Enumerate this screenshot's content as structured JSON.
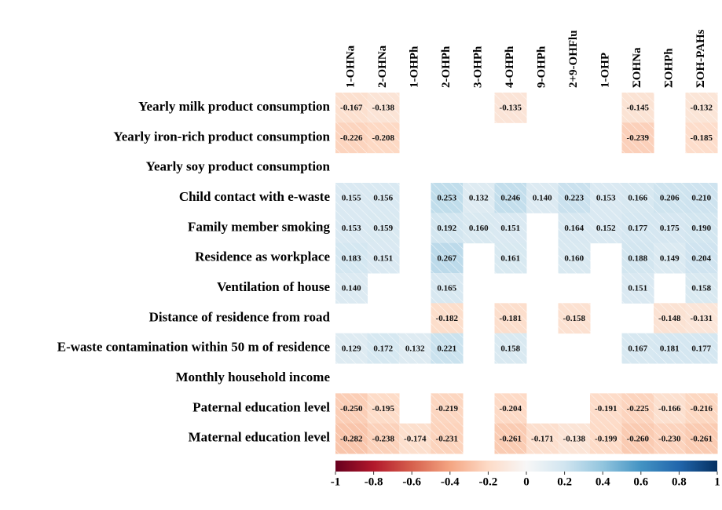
{
  "chart_data": {
    "type": "heatmap",
    "columns": [
      "1-OHNa",
      "2-OHNa",
      "1-OHPh",
      "2-OHPh",
      "3-OHPh",
      "4-OHPh",
      "9-OHPh",
      "2+9-OHFlu",
      "1-OHP",
      "ΣOHNa",
      "ΣOHPh",
      "ΣOH-PAHs"
    ],
    "rows": [
      "Yearly milk product consumption",
      "Yearly iron-rich product consumption",
      "Yearly soy product consumption",
      "Child contact with e-waste",
      "Family member smoking",
      "Residence as workplace",
      "Ventilation of house",
      "Distance of residence from road",
      "E-waste contamination within 50 m of residence",
      "Monthly household income",
      "Paternal education level",
      "Maternal education level"
    ],
    "values": [
      [
        -0.167,
        -0.138,
        null,
        null,
        null,
        -0.135,
        null,
        null,
        null,
        -0.145,
        null,
        -0.132
      ],
      [
        -0.226,
        -0.208,
        null,
        null,
        null,
        null,
        null,
        null,
        null,
        -0.239,
        null,
        -0.185
      ],
      [
        null,
        null,
        null,
        null,
        null,
        null,
        null,
        null,
        null,
        null,
        null,
        null
      ],
      [
        0.155,
        0.156,
        null,
        0.253,
        0.132,
        0.246,
        0.14,
        0.223,
        0.153,
        0.166,
        0.206,
        0.21
      ],
      [
        0.153,
        0.159,
        null,
        0.192,
        0.16,
        0.151,
        null,
        0.164,
        0.152,
        0.177,
        0.175,
        0.19
      ],
      [
        0.183,
        0.151,
        null,
        0.267,
        null,
        0.161,
        null,
        0.16,
        null,
        0.188,
        0.149,
        0.204
      ],
      [
        0.14,
        null,
        null,
        0.165,
        null,
        null,
        null,
        null,
        null,
        0.151,
        null,
        0.158
      ],
      [
        null,
        null,
        null,
        -0.182,
        null,
        -0.181,
        null,
        -0.158,
        null,
        null,
        -0.148,
        -0.131
      ],
      [
        0.129,
        0.172,
        0.132,
        0.221,
        null,
        0.158,
        null,
        null,
        null,
        0.167,
        0.181,
        0.177
      ],
      [
        null,
        null,
        null,
        null,
        null,
        null,
        null,
        null,
        null,
        null,
        null,
        null
      ],
      [
        -0.25,
        -0.195,
        null,
        -0.219,
        null,
        -0.204,
        null,
        null,
        -0.191,
        -0.225,
        -0.166,
        -0.216
      ],
      [
        -0.282,
        -0.238,
        -0.174,
        -0.231,
        null,
        -0.261,
        -0.171,
        -0.138,
        -0.199,
        -0.26,
        -0.23,
        -0.261
      ]
    ],
    "value_labels": [
      [
        "-0.167",
        "-0.138",
        null,
        null,
        null,
        "-0.135",
        null,
        null,
        null,
        "-0.145",
        null,
        "-0.132"
      ],
      [
        "-0.226",
        "-0.208",
        null,
        null,
        null,
        null,
        null,
        null,
        null,
        "-0.239",
        null,
        "-0.185"
      ],
      [
        null,
        null,
        null,
        null,
        null,
        null,
        null,
        null,
        null,
        null,
        null,
        null
      ],
      [
        "0.155",
        "0.156",
        null,
        "0.253",
        "0.132",
        "0.246",
        "0.140",
        "0.223",
        "0.153",
        "0.166",
        "0.206",
        "0.210"
      ],
      [
        "0.153",
        "0.159",
        null,
        "0.192",
        "0.160",
        "0.151",
        null,
        "0.164",
        "0.152",
        "0.177",
        "0.175",
        "0.190"
      ],
      [
        "0.183",
        "0.151",
        null,
        "0.267",
        null,
        "0.161",
        null,
        "0.160",
        null,
        "0.188",
        "0.149",
        "0.204"
      ],
      [
        "0.140",
        null,
        null,
        "0.165",
        null,
        null,
        null,
        null,
        null,
        "0.151",
        null,
        "0.158"
      ],
      [
        null,
        null,
        null,
        "-0.182",
        null,
        "-0.181",
        null,
        "-0.158",
        null,
        null,
        "-0.148",
        "-0.131"
      ],
      [
        "0.129",
        "0.172",
        "0.132",
        "0.221",
        null,
        "0.158",
        null,
        null,
        null,
        "0.167",
        "0.181",
        "0.177"
      ],
      [
        null,
        null,
        null,
        null,
        null,
        null,
        null,
        null,
        null,
        null,
        null,
        null
      ],
      [
        "-0.250",
        "-0.195",
        null,
        "-0.219",
        null,
        "-0.204",
        null,
        null,
        "-0.191",
        "-0.225",
        "-0.166",
        "-0.216"
      ],
      [
        "-0.282",
        "-0.238",
        "-0.174",
        "-0.231",
        null,
        "-0.261",
        "-0.171",
        "-0.138",
        "-0.199",
        "-0.260",
        "-0.230",
        "-0.261"
      ]
    ],
    "colormap": [
      "#67001f",
      "#b2182b",
      "#d6604d",
      "#f4a582",
      "#fddbc7",
      "#f7f7f7",
      "#d1e5f0",
      "#92c5de",
      "#4393c3",
      "#2166ac",
      "#053061"
    ],
    "zlim": [
      -1,
      1
    ],
    "zticks": [
      -1,
      -0.8,
      -0.6,
      -0.4,
      -0.2,
      0,
      0.2,
      0.4,
      0.6,
      0.8,
      1
    ]
  }
}
